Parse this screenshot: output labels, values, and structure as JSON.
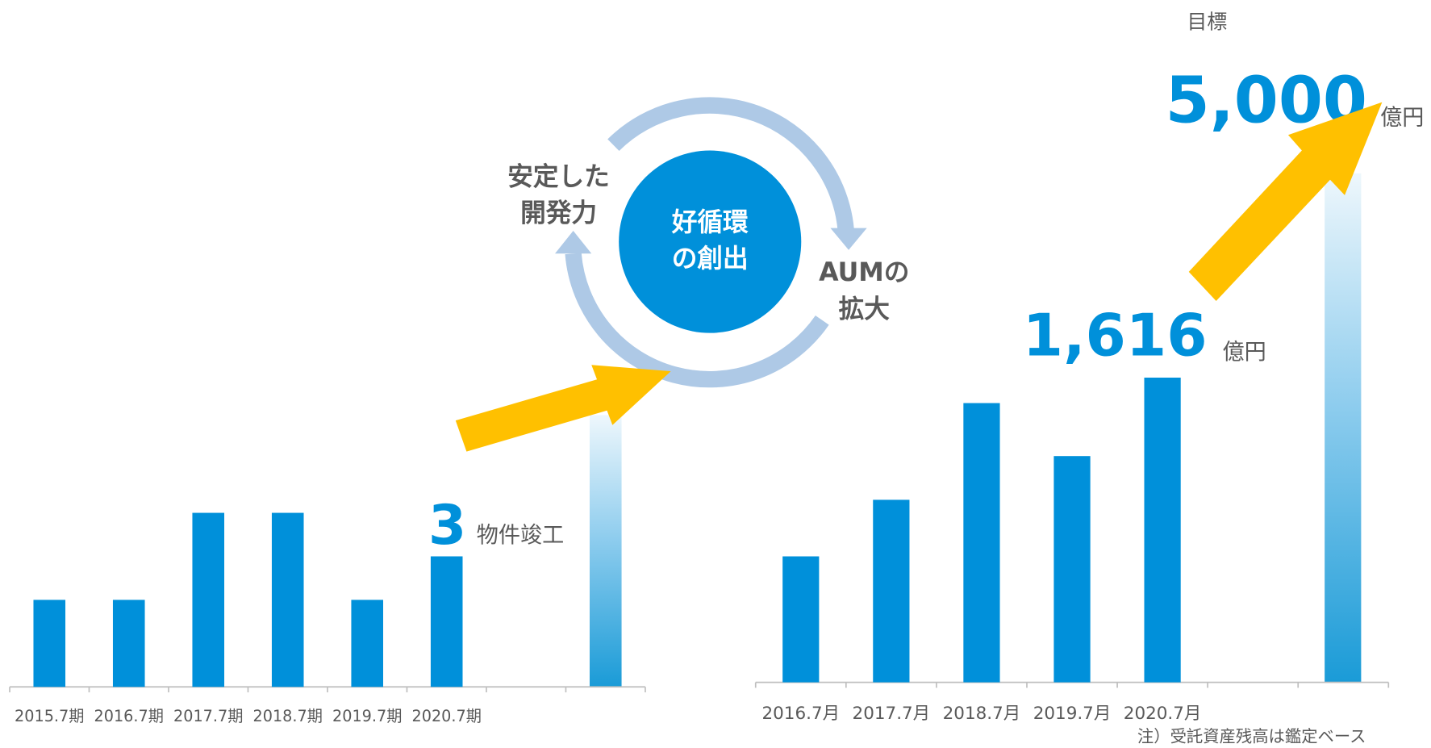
{
  "chart_data": [
    {
      "type": "bar",
      "categories": [
        "2015.7期",
        "2016.7期",
        "2017.7期",
        "2018.7期",
        "2019.7期",
        "2020.7期",
        null,
        null
      ],
      "values": [
        2,
        2,
        4,
        4,
        2,
        3,
        null,
        null
      ],
      "color": "#0090da",
      "unit": "物件竣工"
    },
    {
      "type": "bar",
      "categories": [
        "2016.7月",
        "2017.7月",
        "2018.7月",
        "2019.7月",
        "2020.7月",
        null,
        null
      ],
      "values": [
        668,
        968,
        1481,
        1200,
        1616,
        null,
        null
      ],
      "value_labels": [
        null,
        null,
        null,
        null,
        "1,616",
        null,
        null
      ],
      "color": "#0090da",
      "unit": "億円",
      "target": {
        "label": "目標",
        "value": "5,000",
        "unit": "億円"
      },
      "note": "注）受託資産残高は鑑定ベース"
    }
  ],
  "diagram": {
    "center": [
      "好循環",
      "の創出"
    ],
    "left": [
      "安定した",
      "開発力"
    ],
    "right": [
      "AUMの",
      "拡大"
    ]
  }
}
